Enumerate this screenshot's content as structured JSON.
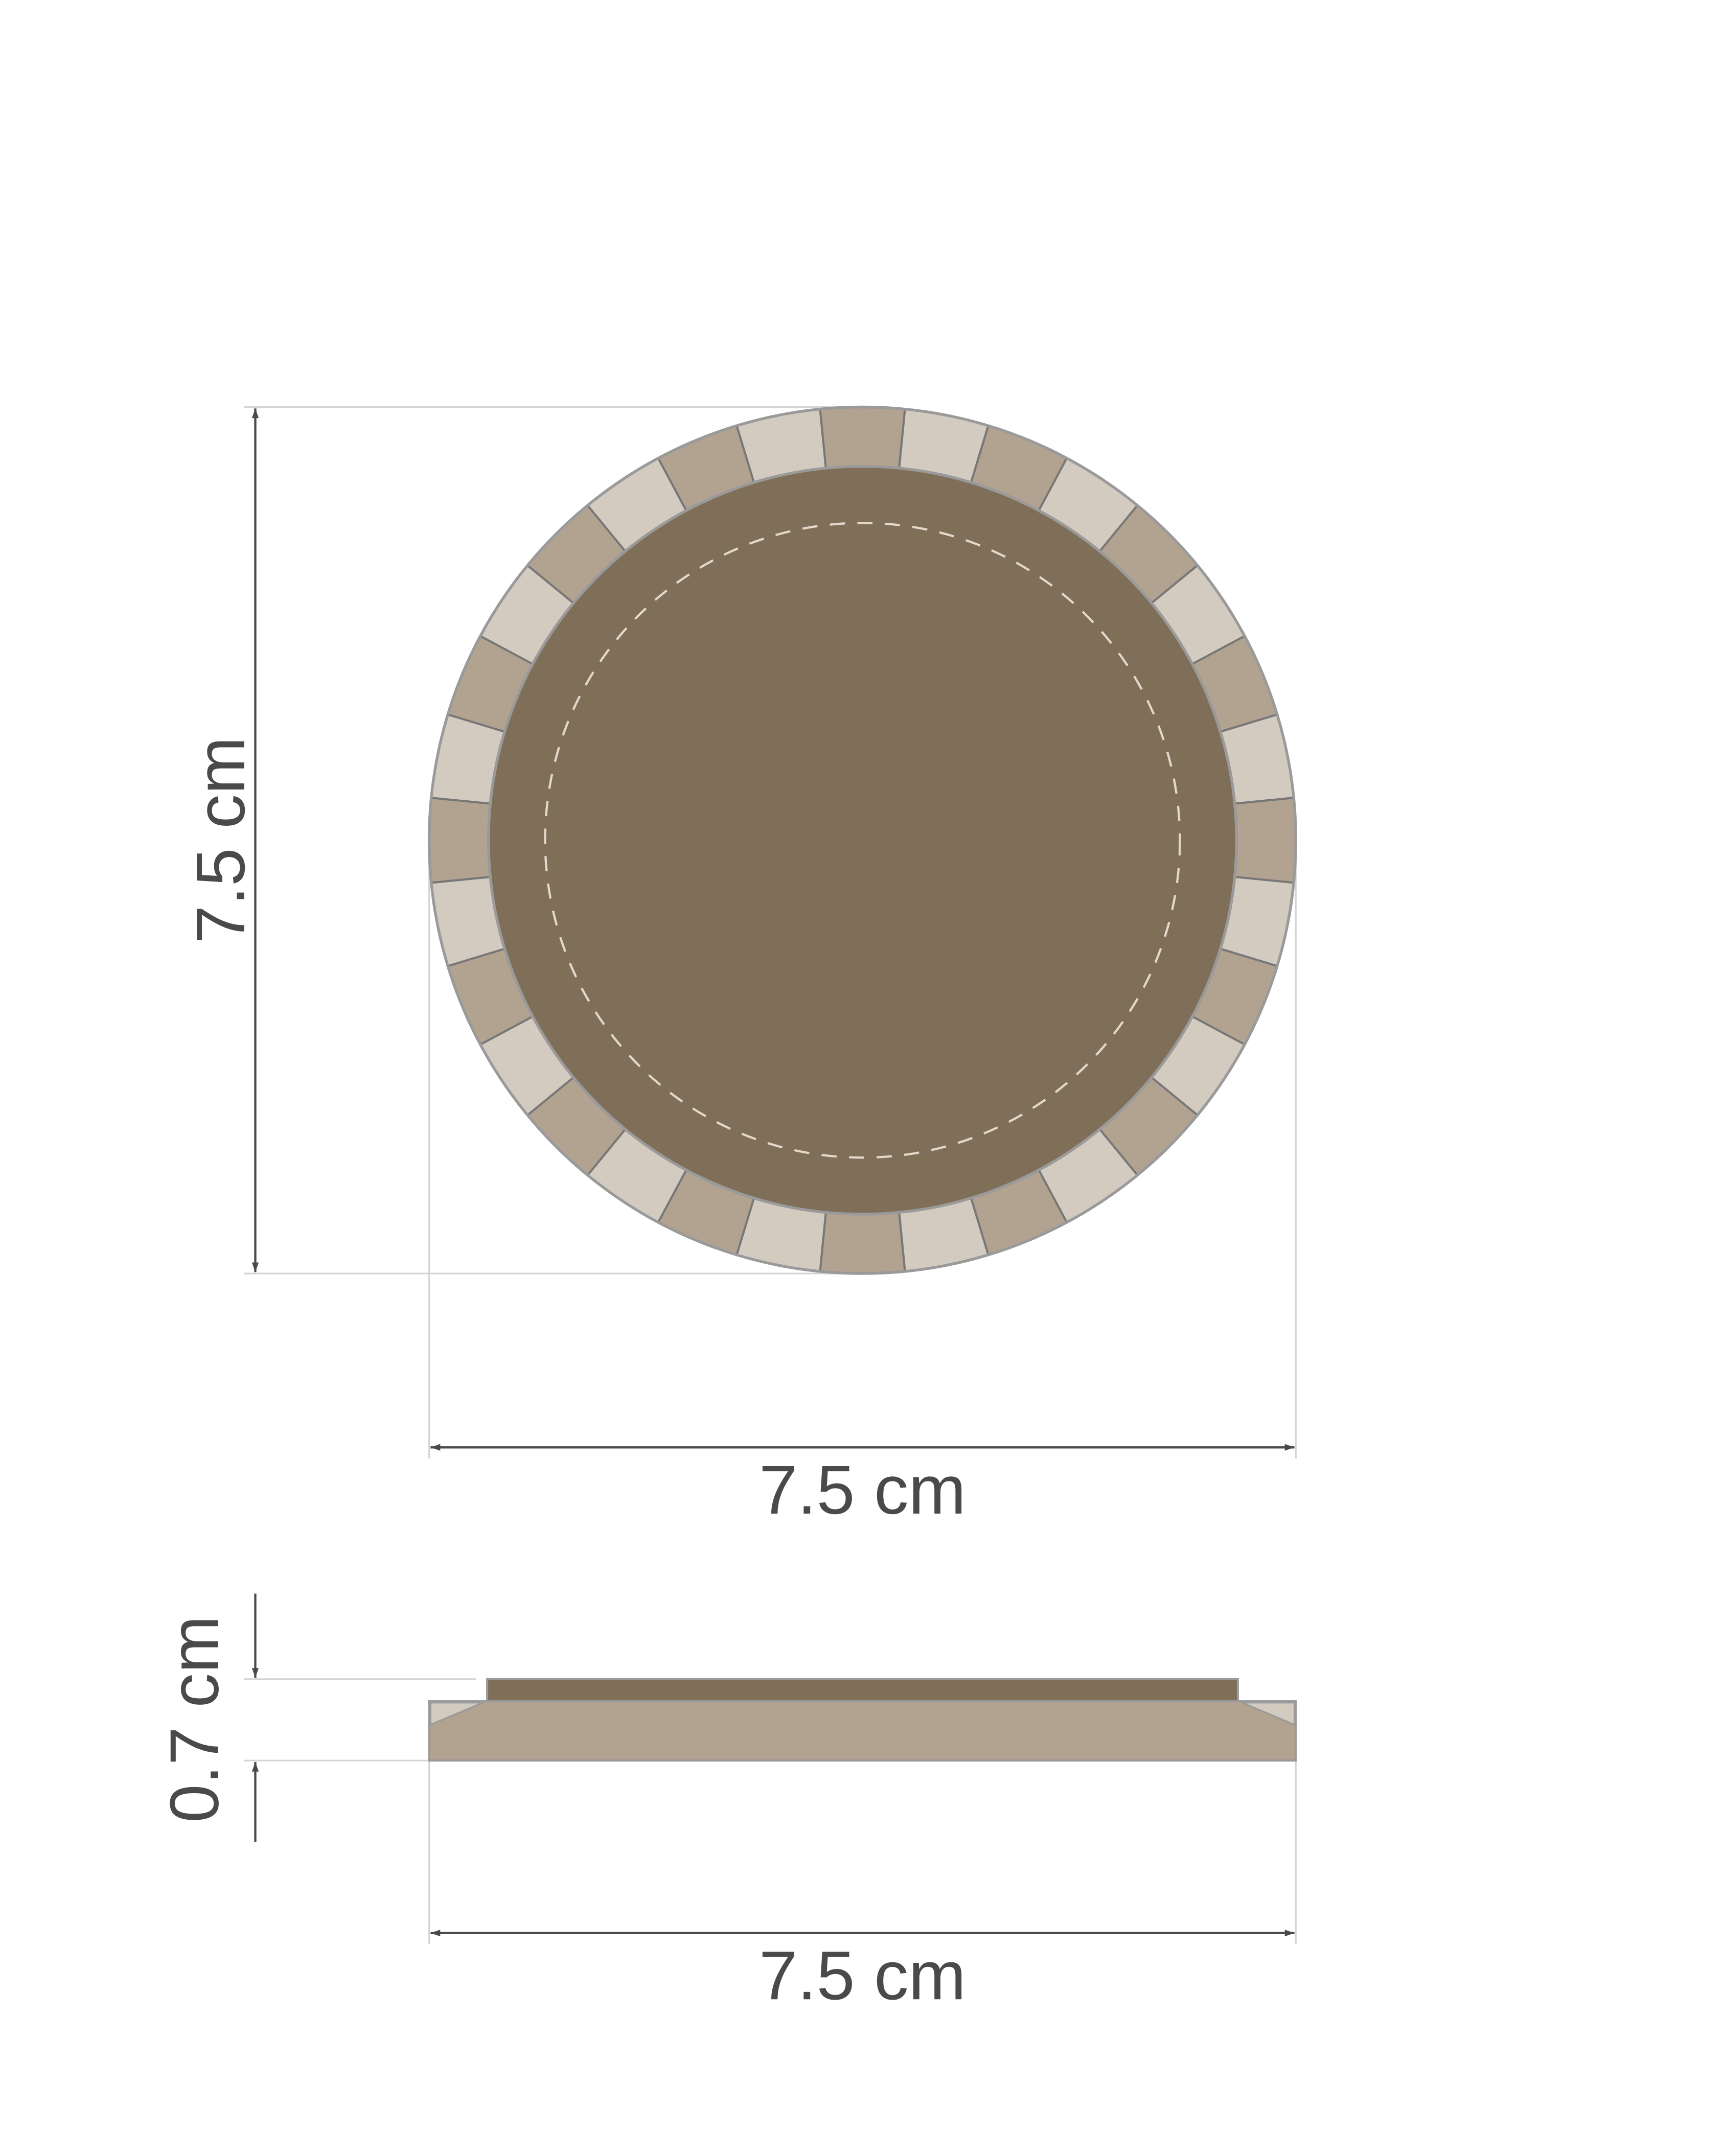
{
  "top_view": {
    "height_label": "7.5 cm",
    "width_label": "7.5 cm",
    "tile_count": 32
  },
  "side_view": {
    "thickness_label": "0.7 cm",
    "width_label": "7.5 cm"
  },
  "colors": {
    "center_disk": "#806f58",
    "tile_dark": "#b2a290",
    "tile_light": "#d4cbc0",
    "outline": "#8a8a8a",
    "stitch": "#e2d8cb",
    "dimension": "#4a4a4a",
    "extension_line": "#d4d4d4"
  }
}
